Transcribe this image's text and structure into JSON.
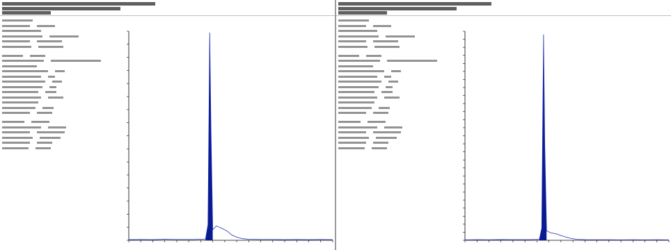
{
  "panels": [
    {
      "header": {
        "line1": "",
        "line2": "",
        "line3": ""
      },
      "info": [],
      "chart_data": {
        "type": "line",
        "title": "",
        "xlabel": "",
        "ylabel": "",
        "peak_label": "",
        "xlim": [
          21.0,
          38.0
        ],
        "ylim": [
          0,
          800
        ],
        "x_ticks": [],
        "y_ticks": [],
        "series": [
          {
            "x": [
              21.0,
              22.0,
              23.0,
              24.0,
              25.0,
              26.5,
              27.4,
              27.6,
              27.75,
              27.85,
              28.0,
              28.3,
              28.8,
              29.2,
              29.6,
              30.0,
              30.5,
              31.0,
              32.0,
              33.0,
              34.0,
              35.0,
              36.0,
              37.0,
              38.0
            ],
            "y": [
              2,
              3,
              2,
              4,
              3,
              3,
              5,
              60,
              795,
              420,
              40,
              55,
              45,
              35,
              20,
              12,
              6,
              4,
              3,
              3,
              2,
              3,
              2,
              3,
              2
            ]
          }
        ]
      }
    },
    {
      "header": {
        "line1": "",
        "line2": "",
        "line3": ""
      },
      "info": [],
      "chart_data": {
        "type": "line",
        "title": "",
        "xlabel": "",
        "ylabel": "",
        "peak_label": "",
        "xlim": [
          21.0,
          38.0
        ],
        "ylim": [
          0,
          2600
        ],
        "x_ticks": [],
        "y_ticks": [],
        "series": [
          {
            "x": [
              21.0,
              22.0,
              23.0,
              24.0,
              25.0,
              26.5,
              27.2,
              27.4,
              27.55,
              27.65,
              27.8,
              28.1,
              28.6,
              29.0,
              29.4,
              29.8,
              30.3,
              31.0,
              32.0,
              33.0,
              34.0,
              35.0,
              36.0,
              37.0,
              38.0
            ],
            "y": [
              5,
              8,
              6,
              9,
              8,
              8,
              12,
              150,
              2560,
              1200,
              120,
              95,
              80,
              60,
              40,
              25,
              12,
              8,
              6,
              6,
              5,
              6,
              5,
              6,
              5
            ]
          }
        ]
      }
    }
  ]
}
